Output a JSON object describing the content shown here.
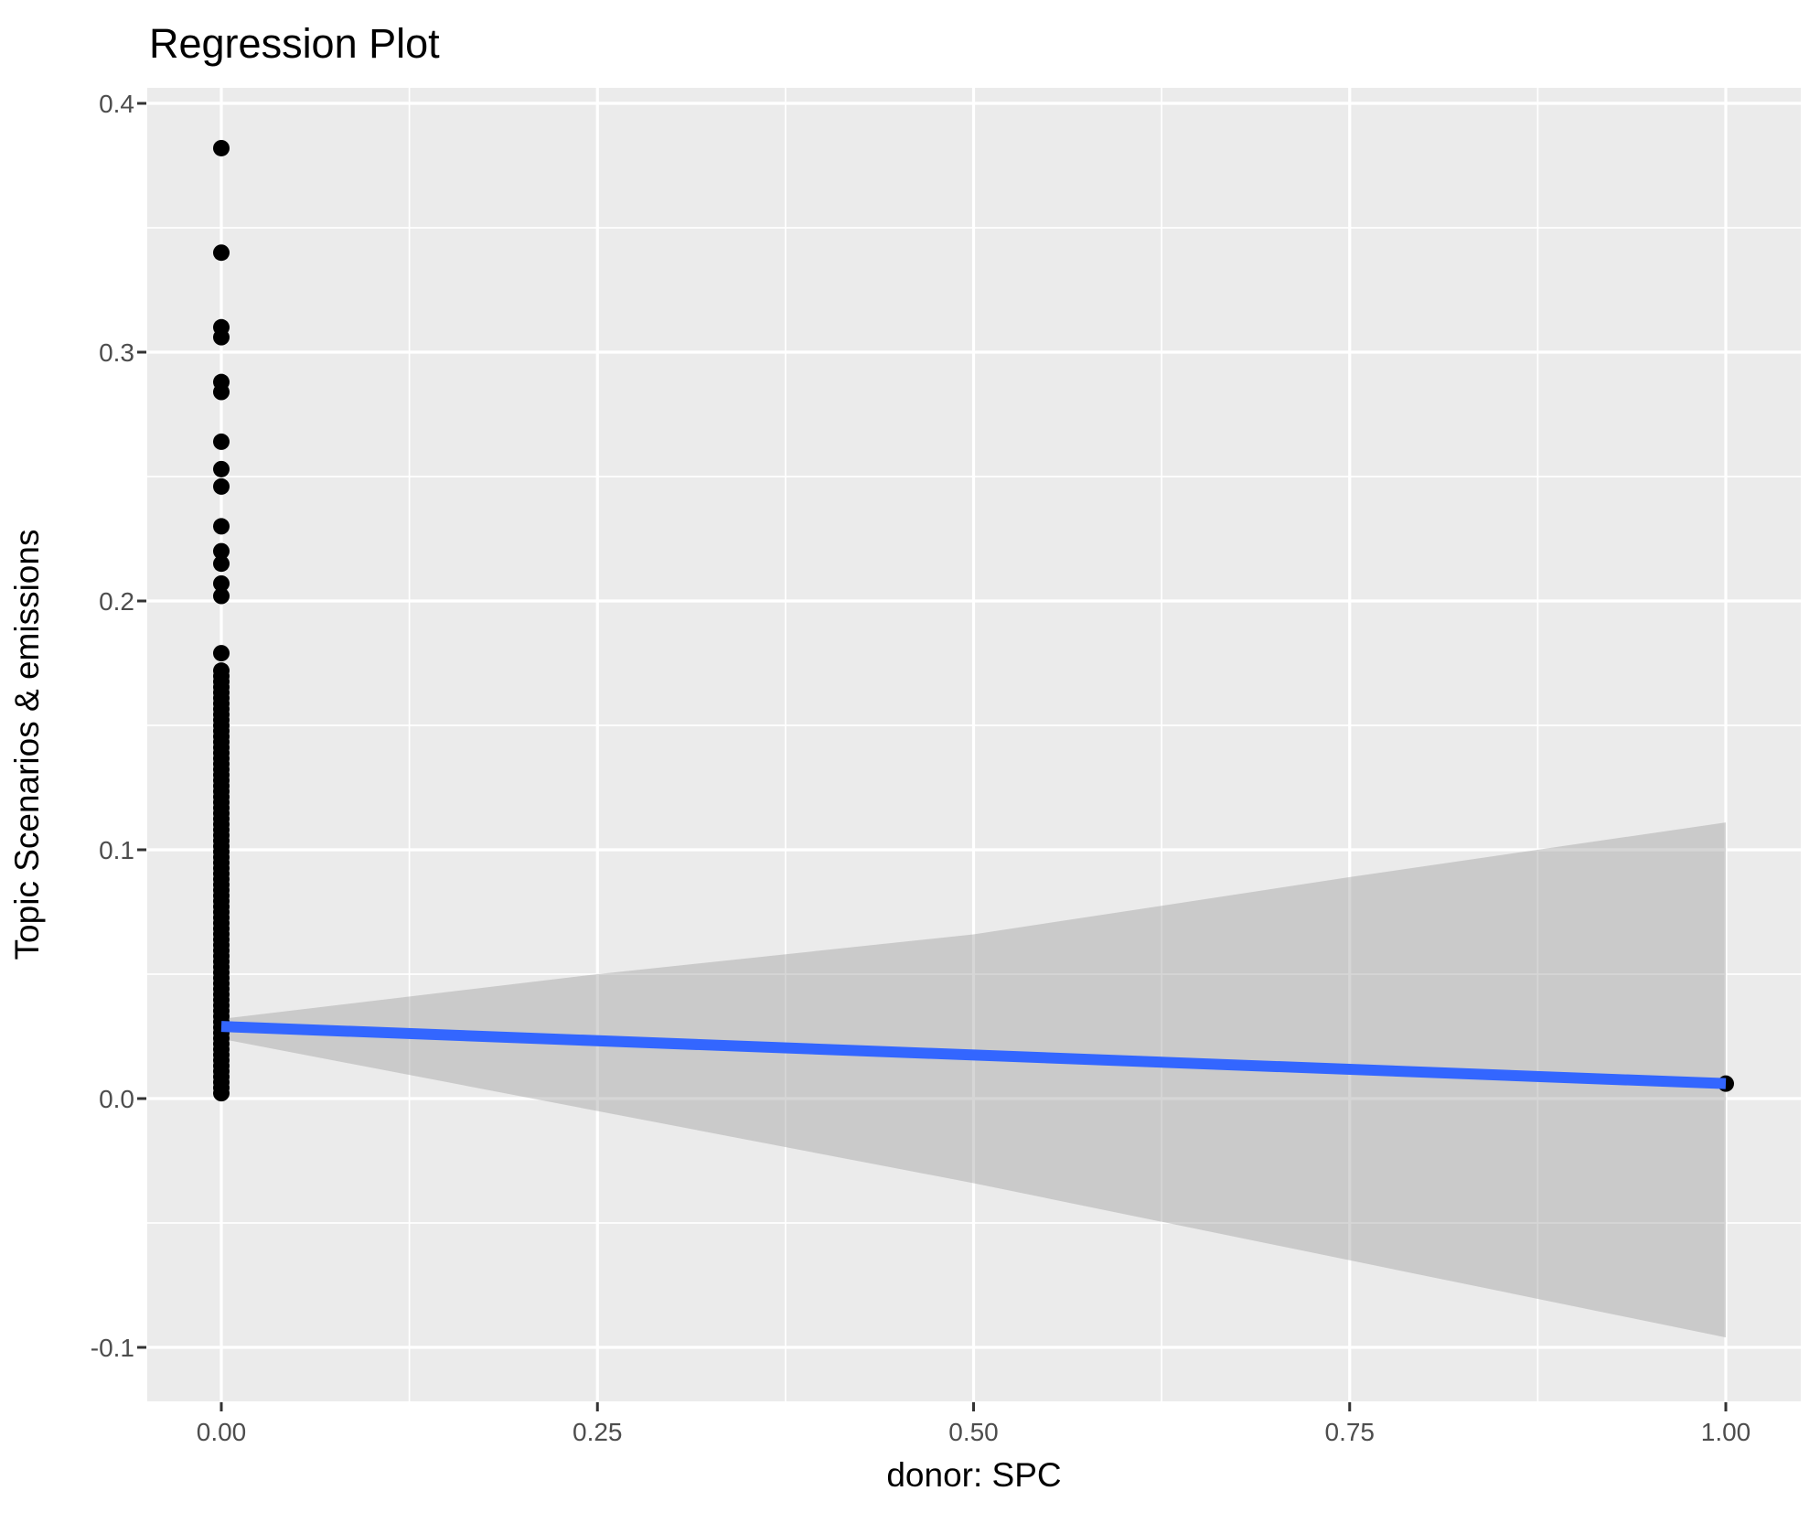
{
  "title": "Regression Plot",
  "axes": {
    "x": {
      "label": "donor: SPC",
      "ticks": [
        0,
        0.25,
        0.5,
        0.75,
        1.0
      ],
      "tick_labels": [
        "0.00",
        "0.25",
        "0.50",
        "0.75",
        "1.00"
      ],
      "range": [
        -0.05,
        1.05
      ]
    },
    "y": {
      "label": "Topic Scenarios & emissions",
      "ticks": [
        -0.1,
        0.0,
        0.1,
        0.2,
        0.3,
        0.4
      ],
      "tick_labels": [
        "-0.1",
        "0.0",
        "0.1",
        "0.2",
        "0.3",
        "0.4"
      ],
      "range": [
        -0.122,
        0.407
      ]
    }
  },
  "colors": {
    "background": "#FFFFFF",
    "panel": "#EBEBEB",
    "grid_major": "#FFFFFF",
    "grid_minor": "#FFFFFF",
    "point": "#000000",
    "regression_line": "#3366FF",
    "confidence_band": "rgba(153,153,153,0.4)",
    "tick_label": "#4D4D4D",
    "tick_mark": "#333333",
    "axis_title": "#000000",
    "plot_title": "#000000"
  },
  "chart_data": {
    "type": "scatter",
    "title": "Regression Plot",
    "xlabel": "donor: SPC",
    "ylabel": "Topic Scenarios & emissions",
    "xlim": [
      -0.05,
      1.05
    ],
    "ylim": [
      -0.122,
      0.407
    ],
    "grid": true,
    "legend": false,
    "x_ticks": [
      0,
      0.25,
      0.5,
      0.75,
      1.0
    ],
    "y_ticks": [
      -0.1,
      0.0,
      0.1,
      0.2,
      0.3,
      0.4
    ],
    "scatter_x0_discrete_y": [
      0.382,
      0.34,
      0.31,
      0.306,
      0.288,
      0.284,
      0.264,
      0.253,
      0.246,
      0.23,
      0.22,
      0.215,
      0.207,
      0.202,
      0.179
    ],
    "scatter_x0_dense_stack": {
      "x": 0.0,
      "y_min": 0.0,
      "y_max": 0.172,
      "description": "near-continuous vertical stack of many overlapping points at x=0"
    },
    "scatter_x1_point": {
      "x": 1.0,
      "y": 0.006
    },
    "regression_line": {
      "x": [
        0.0,
        1.0
      ],
      "y": [
        0.029,
        0.006
      ]
    },
    "confidence_band": {
      "x": [
        0.0,
        0.25,
        0.5,
        0.75,
        1.0
      ],
      "upper": [
        0.032,
        0.05,
        0.066,
        0.089,
        0.111
      ],
      "lower": [
        0.024,
        -0.005,
        -0.034,
        -0.065,
        -0.096
      ]
    }
  }
}
